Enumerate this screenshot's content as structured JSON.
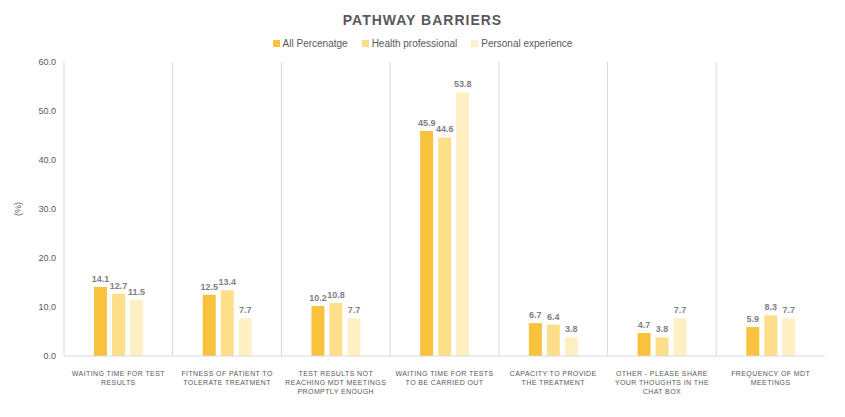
{
  "chart_data": {
    "type": "bar",
    "title": "PATHWAY BARRIERS",
    "y_label": "(%)",
    "categories": [
      "WAITING TIME FOR TEST RESULTS",
      "FITNESS OF PATIENT TO TOLERATE TREATMENT",
      "TEST RESULTS NOT REACHING MDT MEETINGS PROMPTLY ENOUGH",
      "WAITING TIME FOR TESTS TO BE CARRIED OUT",
      "CAPACITY TO PROVIDE THE TREATMENT",
      "OTHER - PLEASE SHARE YOUR THOUGHTS IN THE CHAT BOX",
      "FREQUENCY OF MDT MEETINGS"
    ],
    "series": [
      {
        "name": "All Percenatge",
        "color": "#F9C23C",
        "values": [
          14.1,
          12.5,
          10.2,
          45.9,
          6.7,
          4.7,
          5.9
        ]
      },
      {
        "name": "Health professional",
        "color": "#FDDF8A",
        "values": [
          12.7,
          13.4,
          10.8,
          44.6,
          6.4,
          3.8,
          8.3
        ]
      },
      {
        "name": "Personal experience",
        "color": "#FFF0C4",
        "values": [
          11.5,
          7.7,
          7.7,
          53.8,
          3.8,
          7.7,
          7.7
        ]
      }
    ],
    "ylim": [
      0,
      60
    ],
    "yticks": [
      {
        "value": 0,
        "label": "0.0"
      },
      {
        "value": 10,
        "label": "10.0"
      },
      {
        "value": 20,
        "label": "20.0"
      },
      {
        "value": 30,
        "label": "30.0"
      },
      {
        "value": 40,
        "label": "40.0"
      },
      {
        "value": 50,
        "label": "50.0"
      },
      {
        "value": 60,
        "label": "60.0"
      }
    ],
    "grid": true,
    "data_labels": true,
    "legend": "top"
  }
}
